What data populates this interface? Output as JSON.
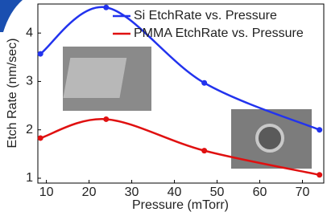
{
  "chart_data": {
    "type": "line",
    "x_label": "Pressure (mTorr)",
    "y_label": "Etch Rate (nm/sec)",
    "series": [
      {
        "name": "Si EtchRate vs. Pressure",
        "color": "#2233ee",
        "x": [
          8.6,
          24,
          47,
          74
        ],
        "values": [
          3.57,
          4.53,
          2.97,
          2.0
        ]
      },
      {
        "name": "PMMA EtchRate vs. Pressure",
        "color": "#e01010",
        "x": [
          8.6,
          24,
          47,
          74
        ],
        "values": [
          1.83,
          2.22,
          1.57,
          1.07
        ]
      }
    ],
    "xlim": [
      8,
      75
    ],
    "xticks": [
      10,
      20,
      30,
      40,
      50,
      60,
      70
    ],
    "ylim": [
      0.9,
      4.6
    ],
    "yticks": [
      1,
      2,
      3,
      4
    ],
    "legend": "top-right"
  }
}
